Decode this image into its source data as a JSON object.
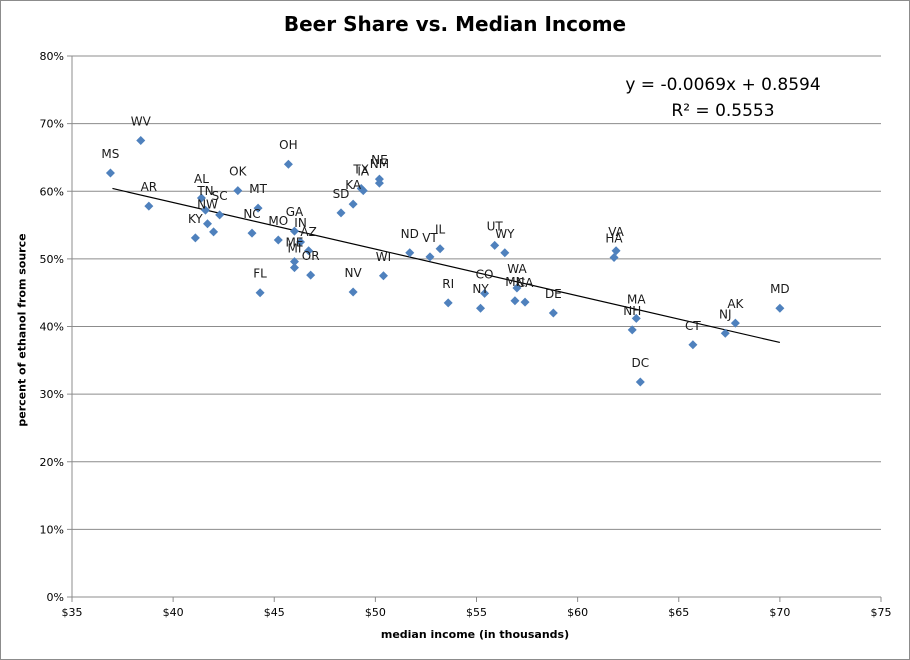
{
  "chart_data": {
    "type": "scatter",
    "title": "Beer Share vs. Median Income",
    "xlabel": "median income (in thousands)",
    "ylabel": "percent of ethanol from source",
    "xlim": [
      35,
      75
    ],
    "ylim": [
      0,
      0.8
    ],
    "x_ticks": [
      35,
      40,
      45,
      50,
      55,
      60,
      65,
      70,
      75
    ],
    "x_tick_labels": [
      "$35",
      "$40",
      "$45",
      "$50",
      "$55",
      "$60",
      "$65",
      "$70",
      "$75"
    ],
    "y_ticks": [
      0,
      0.1,
      0.2,
      0.3,
      0.4,
      0.5,
      0.6,
      0.7,
      0.8
    ],
    "y_tick_labels": [
      "0%",
      "10%",
      "20%",
      "30%",
      "40%",
      "50%",
      "60%",
      "70%",
      "80%"
    ],
    "grid": "horizontal",
    "marker_color": "#4f81bd",
    "trendline": {
      "slope": -0.0069,
      "intercept": 0.8594,
      "x_range": [
        37,
        70
      ],
      "equation": "y = -0.0069x + 0.8594",
      "r_squared": "R² = 0.5553"
    },
    "points": [
      {
        "label": "MS",
        "x": 36.9,
        "y": 0.627
      },
      {
        "label": "WV",
        "x": 38.4,
        "y": 0.675
      },
      {
        "label": "AR",
        "x": 38.8,
        "y": 0.578
      },
      {
        "label": "KY",
        "x": 41.1,
        "y": 0.531
      },
      {
        "label": "AL",
        "x": 41.4,
        "y": 0.59
      },
      {
        "label": "TN",
        "x": 41.6,
        "y": 0.572
      },
      {
        "label": "NW",
        "x": 41.7,
        "y": 0.552
      },
      {
        "label": "",
        "x": 42.0,
        "y": 0.54
      },
      {
        "label": "SC",
        "x": 42.3,
        "y": 0.565
      },
      {
        "label": "OK",
        "x": 43.2,
        "y": 0.601
      },
      {
        "label": "NC",
        "x": 43.9,
        "y": 0.538
      },
      {
        "label": "MT",
        "x": 44.2,
        "y": 0.575
      },
      {
        "label": "FL",
        "x": 44.3,
        "y": 0.45
      },
      {
        "label": "MO",
        "x": 45.2,
        "y": 0.528
      },
      {
        "label": "OH",
        "x": 45.7,
        "y": 0.64
      },
      {
        "label": "GA",
        "x": 46.0,
        "y": 0.541
      },
      {
        "label": "ME",
        "x": 46.0,
        "y": 0.496
      },
      {
        "label": "MI",
        "x": 46.0,
        "y": 0.487
      },
      {
        "label": "IN",
        "x": 46.3,
        "y": 0.525
      },
      {
        "label": "AZ",
        "x": 46.7,
        "y": 0.512
      },
      {
        "label": "OR",
        "x": 46.8,
        "y": 0.476
      },
      {
        "label": "SD",
        "x": 48.3,
        "y": 0.568
      },
      {
        "label": "KA",
        "x": 48.9,
        "y": 0.581
      },
      {
        "label": "NV",
        "x": 48.9,
        "y": 0.451
      },
      {
        "label": "TX",
        "x": 49.3,
        "y": 0.604
      },
      {
        "label": "IA",
        "x": 49.4,
        "y": 0.601
      },
      {
        "label": "NE",
        "x": 50.2,
        "y": 0.618
      },
      {
        "label": "NM",
        "x": 50.2,
        "y": 0.612
      },
      {
        "label": "WI",
        "x": 50.4,
        "y": 0.475
      },
      {
        "label": "ND",
        "x": 51.7,
        "y": 0.509
      },
      {
        "label": "VT",
        "x": 52.7,
        "y": 0.503
      },
      {
        "label": "IL",
        "x": 53.2,
        "y": 0.515
      },
      {
        "label": "RI",
        "x": 53.6,
        "y": 0.435
      },
      {
        "label": "NY",
        "x": 55.2,
        "y": 0.427
      },
      {
        "label": "CO",
        "x": 55.4,
        "y": 0.449
      },
      {
        "label": "UT",
        "x": 55.9,
        "y": 0.52
      },
      {
        "label": "WY",
        "x": 56.4,
        "y": 0.509
      },
      {
        "label": "MN",
        "x": 56.9,
        "y": 0.438
      },
      {
        "label": "WA",
        "x": 57.0,
        "y": 0.457
      },
      {
        "label": "CA",
        "x": 57.4,
        "y": 0.436
      },
      {
        "label": "DE",
        "x": 58.8,
        "y": 0.42
      },
      {
        "label": "VA",
        "x": 61.9,
        "y": 0.512
      },
      {
        "label": "HA",
        "x": 61.8,
        "y": 0.502
      },
      {
        "label": "MA",
        "x": 62.9,
        "y": 0.412
      },
      {
        "label": "NH",
        "x": 62.7,
        "y": 0.395
      },
      {
        "label": "DC",
        "x": 63.1,
        "y": 0.318
      },
      {
        "label": "CT",
        "x": 65.7,
        "y": 0.373
      },
      {
        "label": "NJ",
        "x": 67.3,
        "y": 0.39
      },
      {
        "label": "AK",
        "x": 67.8,
        "y": 0.405
      },
      {
        "label": "MD",
        "x": 70.0,
        "y": 0.427
      }
    ]
  }
}
